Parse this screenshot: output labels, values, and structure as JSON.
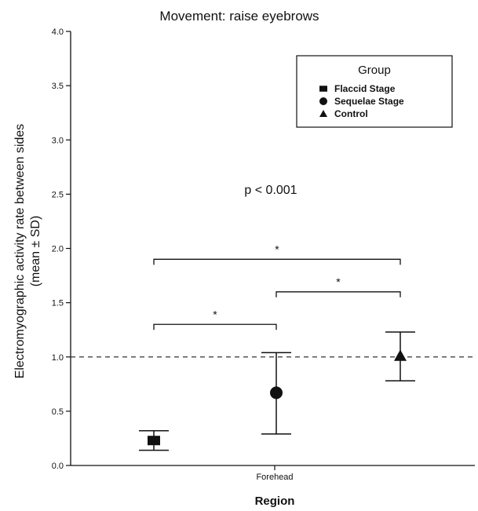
{
  "chart_data": {
    "type": "scatter",
    "title": "Movement: raise eyebrows",
    "xlabel": "Region",
    "ylabel": "Electromyographic activity rate between sides",
    "ylabel_sub": "(mean ± SD)",
    "categories": [
      "Forehead"
    ],
    "ylim": [
      0.0,
      4.0
    ],
    "yticks": [
      "0.0",
      "0.5",
      "1.0",
      "1.5",
      "2.0",
      "2.5",
      "3.0",
      "3.5",
      "4.0"
    ],
    "reference_line": 1.0,
    "legend_title": "Group",
    "legend_position": "top-right",
    "grid": false,
    "series": [
      {
        "name": "Flaccid Stage",
        "marker": "square",
        "mean": 0.23,
        "lower": 0.14,
        "upper": 0.32
      },
      {
        "name": "Sequelae Stage",
        "marker": "circle",
        "mean": 0.67,
        "lower": 0.29,
        "upper": 1.04
      },
      {
        "name": "Control",
        "marker": "triangle",
        "mean": 1.01,
        "lower": 0.78,
        "upper": 1.23
      }
    ],
    "annotation": "p < 0.001",
    "significance": [
      {
        "from": 0,
        "to": 2,
        "y": 1.9,
        "label": "*"
      },
      {
        "from": 1,
        "to": 2,
        "y": 1.6,
        "label": "*"
      },
      {
        "from": 0,
        "to": 1,
        "y": 1.3,
        "label": "*"
      }
    ]
  }
}
